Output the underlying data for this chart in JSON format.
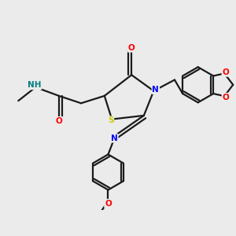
{
  "background_color": "#ebebeb",
  "bond_color": "#1a1a1a",
  "atom_colors": {
    "N": "#0000ff",
    "O": "#ff0000",
    "S": "#cccc00",
    "H": "#008080",
    "C": "#1a1a1a"
  },
  "figsize": [
    3.0,
    3.0
  ],
  "dpi": 100
}
